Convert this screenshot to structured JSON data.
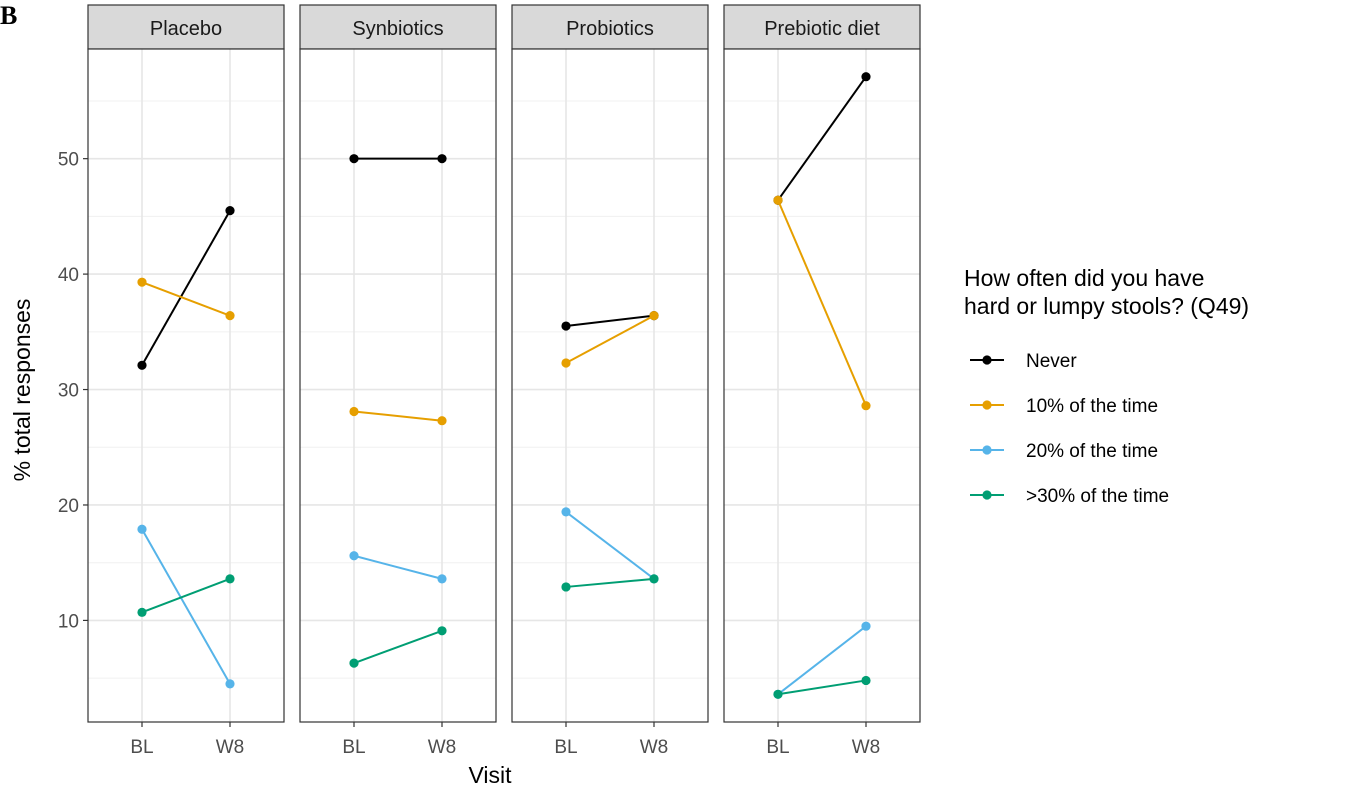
{
  "panel_label": "B",
  "chart_data": {
    "type": "line",
    "facets": [
      "Placebo",
      "Synbiotics",
      "Probiotics",
      "Prebiotic diet"
    ],
    "categories": [
      "BL",
      "W8"
    ],
    "xlabel": "Visit",
    "ylabel": "% total responses",
    "yticks": [
      10,
      20,
      30,
      40,
      50
    ],
    "ylim": [
      1.2,
      59.5
    ],
    "grid": true,
    "legend": {
      "title_lines": [
        "How often did you have",
        "hard or lumpy stools? (Q49)"
      ],
      "position": "right"
    },
    "series": [
      {
        "name": "Never",
        "color": "#000000",
        "values": {
          "Placebo": [
            32.1,
            45.5
          ],
          "Synbiotics": [
            50.0,
            50.0
          ],
          "Probiotics": [
            35.5,
            36.4
          ],
          "Prebiotic diet": [
            46.4,
            57.1
          ]
        }
      },
      {
        "name": "10% of the time",
        "color": "#E69F00",
        "values": {
          "Placebo": [
            39.3,
            36.4
          ],
          "Synbiotics": [
            28.1,
            27.3
          ],
          "Probiotics": [
            32.3,
            36.4
          ],
          "Prebiotic diet": [
            46.4,
            28.6
          ]
        }
      },
      {
        "name": "20% of the time",
        "color": "#56B4E9",
        "values": {
          "Placebo": [
            17.9,
            4.5
          ],
          "Synbiotics": [
            15.6,
            13.6
          ],
          "Probiotics": [
            19.4,
            13.6
          ],
          "Prebiotic diet": [
            3.6,
            9.5
          ]
        }
      },
      {
        "name": ">30% of the time",
        "color": "#009E73",
        "values": {
          "Placebo": [
            10.7,
            13.6
          ],
          "Synbiotics": [
            6.3,
            9.1
          ],
          "Probiotics": [
            12.9,
            13.6
          ],
          "Prebiotic diet": [
            3.6,
            4.8
          ]
        }
      }
    ]
  }
}
